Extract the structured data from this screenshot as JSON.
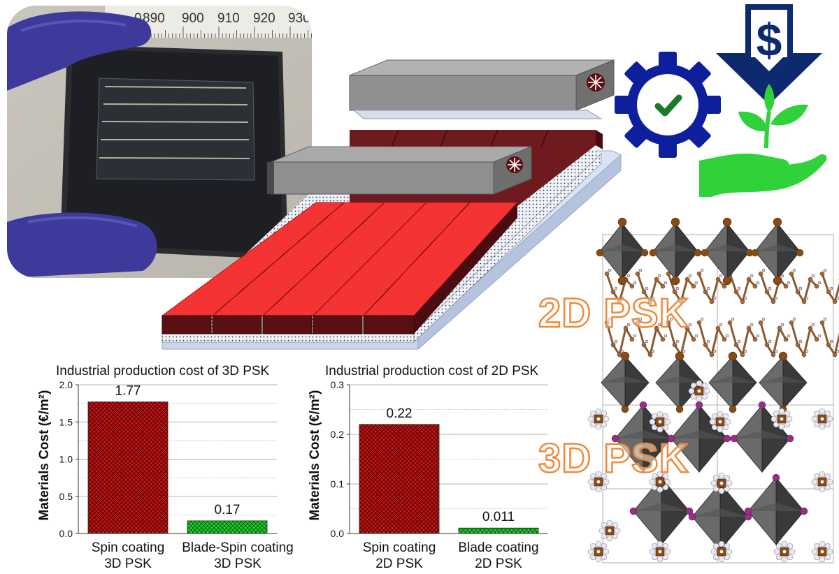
{
  "labels": {
    "psk2d": "2D PSK",
    "psk3d": "3D PSK"
  },
  "ruler": {
    "ticks": [
      "890",
      "900",
      "910",
      "920",
      "930"
    ],
    "partial": "0"
  },
  "icons": {
    "gear": "gear-check-icon",
    "price": "price-down-arrow-icon",
    "dollar": "$",
    "eco": "hand-plant-icon"
  },
  "colors": {
    "bar_red": "#c61414",
    "bar_green": "#1fcf2a",
    "perovskite": "#ff3a3a",
    "maroon": "#5a0f13",
    "blade": "#8f8f8f",
    "gear_blue": "#0e1f9e",
    "arrow_navy": "#0e2a6e",
    "eco_green": "#2fd23a",
    "outline_orange": "#ee8a3b"
  },
  "chart_data": [
    {
      "type": "bar",
      "title": "Industrial production cost of 3D PSK",
      "ylabel": "Materials Cost (€/m²)",
      "ylim": [
        0,
        2.0
      ],
      "yticks": [
        "0.0",
        "0.5",
        "1.0",
        "1.5",
        "2.0"
      ],
      "categories": [
        [
          "Spin coating",
          "3D PSK"
        ],
        [
          "Blade-Spin coating",
          "3D PSK"
        ]
      ],
      "values": [
        1.77,
        0.17
      ],
      "value_labels": [
        "1.77",
        "0.17"
      ],
      "colors": [
        "#c61414",
        "#1fcf2a"
      ],
      "grid": true
    },
    {
      "type": "bar",
      "title": "Industrial production cost of 2D PSK",
      "ylabel": "Materials Cost (€/m²)",
      "ylim": [
        0,
        0.3
      ],
      "yticks": [
        "0.0",
        "0.1",
        "0.2",
        "0.3"
      ],
      "categories": [
        [
          "Spin coating",
          "2D PSK"
        ],
        [
          "Blade coating",
          "2D PSK"
        ]
      ],
      "values": [
        0.22,
        0.011
      ],
      "value_labels": [
        "0.22",
        "0.011"
      ],
      "colors": [
        "#c61414",
        "#1fcf2a"
      ],
      "grid": true
    }
  ]
}
